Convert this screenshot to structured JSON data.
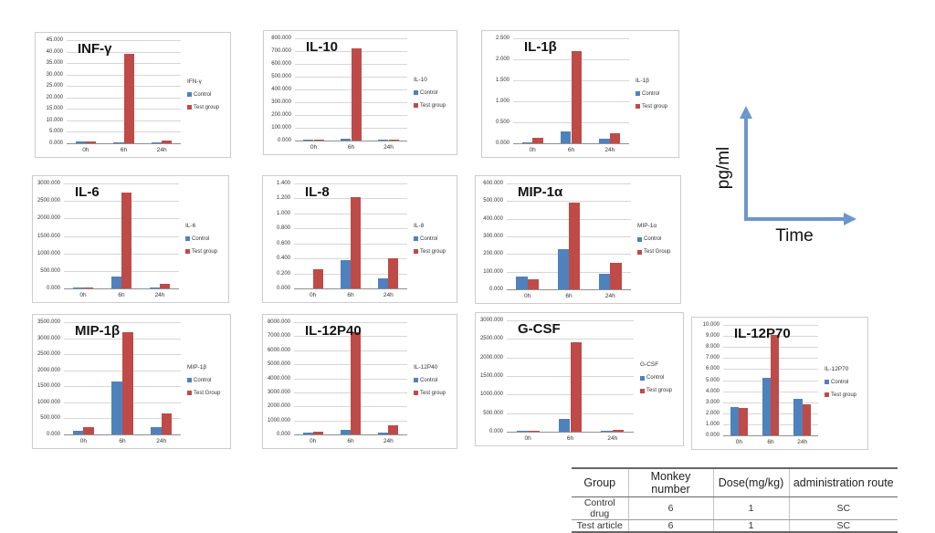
{
  "colors": {
    "control": "#4F81BD",
    "test_group": "#BE4B48",
    "grid": "#D6D6D6",
    "arrow": "#6C96CD"
  },
  "axis_note": {
    "ylabel": "pg/ml",
    "xlabel": "Time"
  },
  "chart_data": [
    {
      "type": "bar",
      "title": "INF-γ",
      "legend_title": "IFN-γ",
      "categories": [
        "0h",
        "6h",
        "24h"
      ],
      "series": [
        {
          "name": "Control",
          "color": "control",
          "values": [
            0.9,
            0.5,
            0.5
          ]
        },
        {
          "name": "Test group",
          "color": "test_group",
          "values": [
            0.8,
            39.2,
            1.0
          ]
        }
      ],
      "ylim": [
        0,
        45
      ],
      "ystep": 5,
      "tick_format_decimals": 3,
      "grid": true,
      "legend_position": "right"
    },
    {
      "type": "bar",
      "title": "IL-10",
      "legend_title": "IL-10",
      "categories": [
        "0h",
        "6h",
        "24h"
      ],
      "series": [
        {
          "name": "Control",
          "color": "control",
          "values": [
            2,
            15,
            2
          ]
        },
        {
          "name": "Test group",
          "color": "test_group",
          "values": [
            2,
            725,
            8
          ]
        }
      ],
      "ylim": [
        0,
        800
      ],
      "ystep": 100,
      "tick_format_decimals": 3,
      "grid": true,
      "legend_position": "right"
    },
    {
      "type": "bar",
      "title": "IL-1β",
      "legend_title": "IL-1β",
      "categories": [
        "0h",
        "6h",
        "24h"
      ],
      "series": [
        {
          "name": "Control",
          "color": "control",
          "values": [
            0.02,
            0.29,
            0.1
          ]
        },
        {
          "name": "Test group",
          "color": "test_group",
          "values": [
            0.13,
            2.2,
            0.23
          ]
        }
      ],
      "ylim": [
        0,
        2.5
      ],
      "ystep": 0.5,
      "tick_format_decimals": 3,
      "grid": true,
      "legend_position": "right"
    },
    {
      "type": "bar",
      "title": "IL-6",
      "legend_title": "IL-6",
      "categories": [
        "0h",
        "6h",
        "24h"
      ],
      "series": [
        {
          "name": "Control",
          "color": "control",
          "values": [
            5,
            340,
            5
          ]
        },
        {
          "name": "Test group",
          "color": "test_group",
          "values": [
            5,
            2750,
            120
          ]
        }
      ],
      "ylim": [
        0,
        3000
      ],
      "ystep": 500,
      "tick_format_decimals": 3,
      "grid": true,
      "legend_position": "right"
    },
    {
      "type": "bar",
      "title": "IL-8",
      "legend_title": "IL-8",
      "categories": [
        "0h",
        "6h",
        "24h"
      ],
      "series": [
        {
          "name": "Control",
          "color": "control",
          "values": [
            0,
            0.38,
            0.13
          ]
        },
        {
          "name": "Test group",
          "color": "test_group",
          "values": [
            0.26,
            1.22,
            0.4
          ]
        }
      ],
      "ylim": [
        0,
        1.4
      ],
      "ystep": 0.2,
      "tick_format_decimals": 3,
      "grid": true,
      "legend_position": "right"
    },
    {
      "type": "bar",
      "title": "MIP-1α",
      "legend_title": "MIP-1α",
      "categories": [
        "0h",
        "6h",
        "24h"
      ],
      "series": [
        {
          "name": "Control",
          "color": "control",
          "values": [
            72,
            228,
            87
          ]
        },
        {
          "name": "Test Group",
          "color": "test_group",
          "values": [
            57,
            492,
            152
          ]
        }
      ],
      "ylim": [
        0,
        600
      ],
      "ystep": 100,
      "tick_format_decimals": 3,
      "grid": true,
      "legend_position": "right"
    },
    {
      "type": "bar",
      "title": "MIP-1β",
      "legend_title": "MIP-1β",
      "categories": [
        "0h",
        "6h",
        "24h"
      ],
      "series": [
        {
          "name": "Control",
          "color": "control",
          "values": [
            100,
            1650,
            230
          ]
        },
        {
          "name": "Test Group",
          "color": "test_group",
          "values": [
            220,
            3180,
            660
          ]
        }
      ],
      "ylim": [
        0,
        3500
      ],
      "ystep": 500,
      "tick_format_decimals": 3,
      "grid": true,
      "legend_position": "right"
    },
    {
      "type": "bar",
      "title": "IL-12P40",
      "legend_title": "IL-12P40",
      "categories": [
        "0h",
        "6h",
        "24h"
      ],
      "series": [
        {
          "name": "Control",
          "color": "control",
          "values": [
            110,
            330,
            120
          ]
        },
        {
          "name": "Test group",
          "color": "test_group",
          "values": [
            190,
            7300,
            640
          ]
        }
      ],
      "ylim": [
        0,
        8000
      ],
      "ystep": 1000,
      "tick_format_decimals": 3,
      "grid": true,
      "legend_position": "right"
    },
    {
      "type": "bar",
      "title": "G-CSF",
      "legend_title": "G-CSF",
      "categories": [
        "0h",
        "6h",
        "24h"
      ],
      "series": [
        {
          "name": "Control",
          "color": "control",
          "values": [
            5,
            340,
            30
          ]
        },
        {
          "name": "Test group",
          "color": "test_group",
          "values": [
            35,
            2400,
            60
          ]
        }
      ],
      "ylim": [
        0,
        3000
      ],
      "ystep": 500,
      "tick_format_decimals": 3,
      "grid": true,
      "legend_position": "right"
    },
    {
      "type": "bar",
      "title": "IL-12P70",
      "legend_title": "IL-12P70",
      "categories": [
        "0h",
        "6h",
        "24h"
      ],
      "series": [
        {
          "name": "Control",
          "color": "control",
          "values": [
            2.6,
            5.2,
            3.3
          ]
        },
        {
          "name": "Test group",
          "color": "test_group",
          "values": [
            2.45,
            9.1,
            2.8
          ]
        }
      ],
      "ylim": [
        0,
        10
      ],
      "ystep": 1,
      "tick_format_decimals": 3,
      "grid": true,
      "legend_position": "right"
    }
  ],
  "table": {
    "headers": [
      "Group",
      "Monkey number",
      "Dose(mg/kg)",
      "administration route"
    ],
    "rows": [
      [
        "Control drug",
        "6",
        "1",
        "SC"
      ],
      [
        "Test article",
        "6",
        "1",
        "SC"
      ]
    ]
  }
}
